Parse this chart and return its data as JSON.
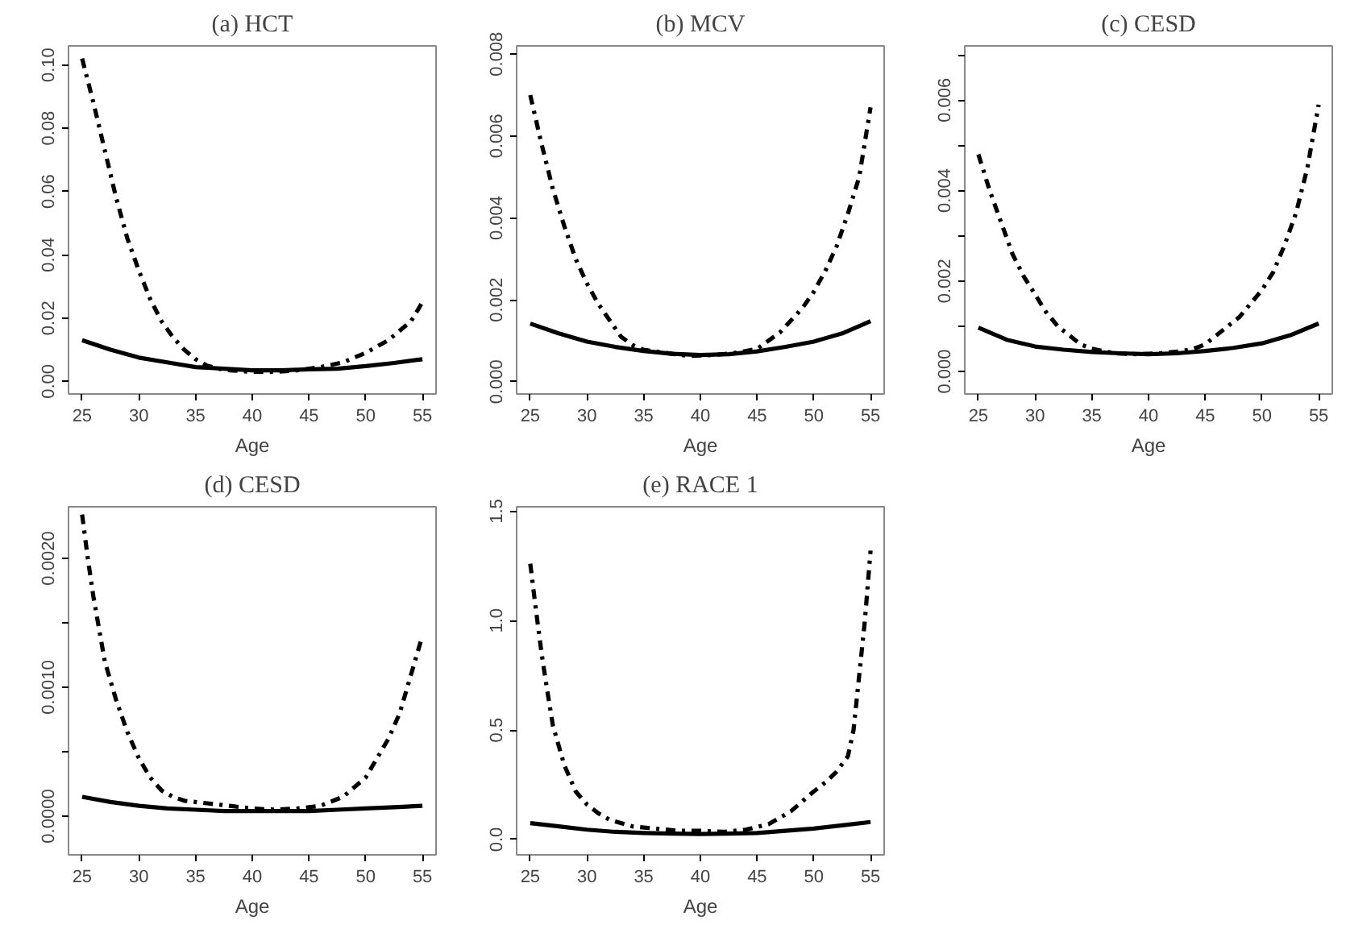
{
  "chart_data": [
    {
      "type": "line",
      "title": "(a) HCT",
      "xlabel": "Age",
      "xlim": [
        23.8,
        56.2
      ],
      "xticks": [
        25,
        30,
        35,
        40,
        45,
        50,
        55
      ],
      "ylim": [
        -0.004,
        0.106
      ],
      "yticks": [
        {
          "value": 0,
          "label": "0.00"
        },
        {
          "value": 0.02,
          "label": "0.02"
        },
        {
          "value": 0.04,
          "label": "0.04"
        },
        {
          "value": 0.06,
          "label": "0.06"
        },
        {
          "value": 0.08,
          "label": "0.08"
        },
        {
          "value": 0.1,
          "label": "0.10"
        }
      ],
      "grid": false,
      "series": [
        {
          "color": "#000000",
          "line_style": "solid",
          "x": [
            25,
            27.5,
            30,
            32.5,
            35,
            37.5,
            40,
            42.5,
            45,
            47.5,
            50,
            52.5,
            55
          ],
          "values": [
            0.013,
            0.01,
            0.0075,
            0.006,
            0.0045,
            0.004,
            0.0035,
            0.0035,
            0.0038,
            0.004,
            0.0048,
            0.0058,
            0.007
          ]
        },
        {
          "color": "#000000",
          "line_style": "dashed",
          "x": [
            25,
            26,
            27,
            28,
            29,
            30,
            31,
            32,
            33,
            34,
            35,
            36,
            37,
            38,
            40,
            42,
            44,
            46,
            48,
            50,
            52,
            54,
            55
          ],
          "values": [
            0.102,
            0.088,
            0.073,
            0.058,
            0.045,
            0.035,
            0.026,
            0.019,
            0.014,
            0.01,
            0.007,
            0.005,
            0.004,
            0.0035,
            0.003,
            0.003,
            0.0035,
            0.0045,
            0.006,
            0.009,
            0.013,
            0.019,
            0.025
          ]
        }
      ]
    },
    {
      "type": "line",
      "title": "(b) MCV",
      "xlabel": "Age",
      "xlim": [
        23.8,
        56.2
      ],
      "xticks": [
        25,
        30,
        35,
        40,
        45,
        50,
        55
      ],
      "ylim": [
        -0.0003,
        0.0082
      ],
      "yticks": [
        {
          "value": 0,
          "label": "0.000"
        },
        {
          "value": 0.002,
          "label": "0.002"
        },
        {
          "value": 0.004,
          "label": "0.004"
        },
        {
          "value": 0.006,
          "label": "0.006"
        },
        {
          "value": 0.008,
          "label": "0.008"
        }
      ],
      "grid": false,
      "series": [
        {
          "color": "#000000",
          "line_style": "solid",
          "x": [
            25,
            27.5,
            30,
            32.5,
            35,
            37.5,
            40,
            42.5,
            45,
            47.5,
            50,
            52.5,
            55
          ],
          "values": [
            0.00142,
            0.00118,
            0.00098,
            0.00085,
            0.00075,
            0.00068,
            0.00065,
            0.00067,
            0.00074,
            0.00085,
            0.00098,
            0.00118,
            0.00148
          ]
        },
        {
          "color": "#000000",
          "line_style": "dashed",
          "x": [
            25,
            26,
            27,
            28,
            29,
            30,
            31,
            32,
            33,
            34,
            35,
            37,
            39,
            41,
            43,
            45,
            46,
            47,
            48,
            49,
            50,
            51,
            52,
            53,
            54,
            55
          ],
          "values": [
            0.007,
            0.0058,
            0.0047,
            0.0038,
            0.003,
            0.0024,
            0.0019,
            0.0015,
            0.0011,
            0.0009,
            0.00078,
            0.0007,
            0.00063,
            0.00065,
            0.0007,
            0.0008,
            0.001,
            0.0012,
            0.0015,
            0.0018,
            0.0022,
            0.0027,
            0.0033,
            0.0041,
            0.005,
            0.0067
          ]
        }
      ]
    },
    {
      "type": "line",
      "title": "(c) CESD",
      "xlabel": "Age",
      "xlim": [
        23.8,
        56.2
      ],
      "xticks": [
        25,
        30,
        35,
        40,
        45,
        50,
        55
      ],
      "ylim": [
        -0.0005,
        0.0072
      ],
      "yticks": [
        {
          "value": 0,
          "label": "0.000"
        },
        {
          "value": 0.001,
          "label": null
        },
        {
          "value": 0.002,
          "label": "0.002"
        },
        {
          "value": 0.003,
          "label": null
        },
        {
          "value": 0.004,
          "label": "0.004"
        },
        {
          "value": 0.005,
          "label": null
        },
        {
          "value": 0.006,
          "label": "0.006"
        },
        {
          "value": 0.007,
          "label": null
        }
      ],
      "grid": false,
      "series": [
        {
          "color": "#000000",
          "line_style": "solid",
          "x": [
            25,
            27.5,
            30,
            32.5,
            35,
            37.5,
            40,
            42.5,
            45,
            47.5,
            50,
            52.5,
            55
          ],
          "values": [
            0.00097,
            0.0007,
            0.00055,
            0.00048,
            0.00043,
            0.0004,
            0.00038,
            0.0004,
            0.00045,
            0.00052,
            0.00062,
            0.0008,
            0.00106
          ]
        },
        {
          "color": "#000000",
          "line_style": "dashed",
          "x": [
            25,
            26,
            27,
            28,
            29,
            30,
            31,
            32,
            33,
            34,
            35,
            37,
            39,
            41,
            43,
            44,
            45,
            46,
            47,
            48,
            49,
            50,
            51,
            52,
            53,
            54,
            55
          ],
          "values": [
            0.0048,
            0.004,
            0.0033,
            0.0026,
            0.0021,
            0.0017,
            0.0013,
            0.001,
            0.0008,
            0.0006,
            0.0005,
            0.0004,
            0.00038,
            0.0004,
            0.00045,
            0.0005,
            0.0006,
            0.0008,
            0.001,
            0.0012,
            0.0015,
            0.0018,
            0.0022,
            0.0028,
            0.0035,
            0.0045,
            0.0059
          ]
        }
      ]
    },
    {
      "type": "line",
      "title": "(d) CESD",
      "xlabel": "Age",
      "xlim": [
        23.8,
        56.2
      ],
      "xticks": [
        25,
        30,
        35,
        40,
        45,
        50,
        55
      ],
      "ylim": [
        -0.0003,
        0.0024
      ],
      "yticks": [
        {
          "value": 0,
          "label": "0.0000"
        },
        {
          "value": 0.0005,
          "label": null
        },
        {
          "value": 0.001,
          "label": "0.0010"
        },
        {
          "value": 0.0015,
          "label": null
        },
        {
          "value": 0.002,
          "label": "0.0020"
        }
      ],
      "grid": false,
      "series": [
        {
          "color": "#000000",
          "line_style": "solid",
          "x": [
            25,
            27.5,
            30,
            32.5,
            35,
            37.5,
            40,
            42.5,
            45,
            47.5,
            50,
            52.5,
            55
          ],
          "values": [
            0.00015,
            0.00011,
            8e-05,
            6e-05,
            5e-05,
            4e-05,
            4e-05,
            4e-05,
            4e-05,
            5e-05,
            6e-05,
            7e-05,
            8e-05
          ]
        },
        {
          "color": "#000000",
          "line_style": "dashed",
          "x": [
            25,
            25.5,
            26,
            26.5,
            27,
            28,
            29,
            30,
            31,
            32,
            33,
            34,
            36,
            38,
            40,
            42,
            44,
            46,
            48,
            50,
            51,
            52,
            53,
            54,
            55
          ],
          "values": [
            0.00234,
            0.002,
            0.0017,
            0.00145,
            0.0012,
            0.0009,
            0.00065,
            0.00045,
            0.0003,
            0.0002,
            0.00015,
            0.00012,
            0.0001,
            8e-05,
            6e-05,
            5e-05,
            6e-05,
            8e-05,
            0.00015,
            0.0003,
            0.00045,
            0.0006,
            0.0008,
            0.0011,
            0.0014
          ]
        }
      ]
    },
    {
      "type": "line",
      "title": "(e) RACE 1",
      "xlabel": "Age",
      "xlim": [
        23.8,
        56.2
      ],
      "xticks": [
        25,
        30,
        35,
        40,
        45,
        50,
        55
      ],
      "ylim": [
        -0.07,
        1.52
      ],
      "yticks": [
        {
          "value": 0,
          "label": "0.0"
        },
        {
          "value": 0.5,
          "label": "0.5"
        },
        {
          "value": 1,
          "label": "1.0"
        },
        {
          "value": 1.5,
          "label": "1.5"
        }
      ],
      "grid": false,
      "series": [
        {
          "color": "#000000",
          "line_style": "solid",
          "x": [
            25,
            27.5,
            30,
            32.5,
            35,
            37.5,
            40,
            42.5,
            45,
            47.5,
            50,
            52.5,
            55
          ],
          "values": [
            0.075,
            0.06,
            0.045,
            0.035,
            0.03,
            0.027,
            0.025,
            0.027,
            0.03,
            0.04,
            0.05,
            0.065,
            0.08
          ]
        },
        {
          "color": "#000000",
          "line_style": "dashed",
          "x": [
            25,
            25.5,
            26,
            26.5,
            27,
            28,
            29,
            30,
            31,
            32,
            34,
            36,
            38,
            40,
            42,
            44,
            46,
            48,
            50,
            51,
            52,
            53,
            53.5,
            54,
            54.5,
            55
          ],
          "values": [
            1.26,
            1.05,
            0.85,
            0.68,
            0.52,
            0.34,
            0.22,
            0.16,
            0.12,
            0.09,
            0.06,
            0.05,
            0.04,
            0.04,
            0.035,
            0.045,
            0.07,
            0.13,
            0.22,
            0.26,
            0.31,
            0.38,
            0.5,
            0.75,
            1.0,
            1.32
          ]
        }
      ]
    }
  ]
}
